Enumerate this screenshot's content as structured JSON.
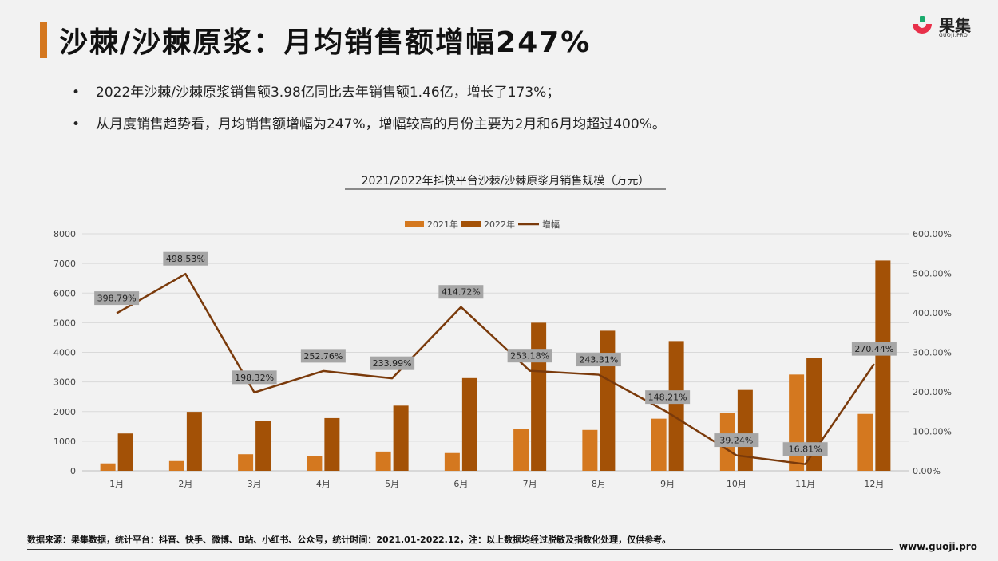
{
  "header": {
    "title": "沙棘/沙棘原浆：月均销售额增幅247%"
  },
  "logo": {
    "name": "果集",
    "sub": "GUOJI.PRO",
    "colors": {
      "red": "#e8304a",
      "green": "#1aab6d"
    }
  },
  "bullets": [
    "2022年沙棘/沙棘原浆销售额3.98亿同比去年销售额1.46亿，增长了173%；",
    "从月度销售趋势看，月均销售额增幅为247%，增幅较高的月份主要为2月和6月均超过400%。"
  ],
  "chart_data": {
    "type": "bar",
    "title": "2021/2022年抖快平台沙棘/沙棘原浆月销售规模（万元）",
    "categories": [
      "1月",
      "2月",
      "3月",
      "4月",
      "5月",
      "6月",
      "7月",
      "8月",
      "9月",
      "10月",
      "11月",
      "12月"
    ],
    "series": [
      {
        "name": "2021年",
        "type": "bar",
        "color": "#d4781f",
        "values": [
          250,
          330,
          560,
          500,
          650,
          600,
          1420,
          1380,
          1760,
          1950,
          3250,
          1920
        ]
      },
      {
        "name": "2022年",
        "type": "bar",
        "color": "#a35106",
        "values": [
          1260,
          1990,
          1680,
          1780,
          2200,
          3130,
          5000,
          4730,
          4380,
          2730,
          3800,
          7100
        ]
      },
      {
        "name": "增幅",
        "type": "line",
        "axis": "right",
        "color": "#7a3a0b",
        "values": [
          398.79,
          498.53,
          198.32,
          252.76,
          233.99,
          414.72,
          253.18,
          243.31,
          148.21,
          39.24,
          16.81,
          270.44
        ],
        "labels": [
          "398.79%",
          "498.53%",
          "198.32%",
          "252.76%",
          "233.99%",
          "414.72%",
          "253.18%",
          "243.31%",
          "148.21%",
          "39.24%",
          "16.81%",
          "270.44%"
        ]
      }
    ],
    "y_left": {
      "min": 0,
      "max": 8000,
      "ticks": [
        "0",
        "1000",
        "2000",
        "3000",
        "4000",
        "5000",
        "6000",
        "7000",
        "8000"
      ]
    },
    "y_right": {
      "min": 0,
      "max": 600,
      "ticks": [
        "0.00%",
        "100.00%",
        "200.00%",
        "300.00%",
        "400.00%",
        "500.00%",
        "600.00%"
      ]
    },
    "legend_position": "top-center",
    "grid": true
  },
  "footer": {
    "note": "数据来源：果集数据，统计平台：抖音、快手、微博、B站、小红书、公众号，统计时间：2021.01-2022.12，注：以上数据均经过脱敏及指数化处理，仅供参考。",
    "url": "www.guoji.pro"
  }
}
